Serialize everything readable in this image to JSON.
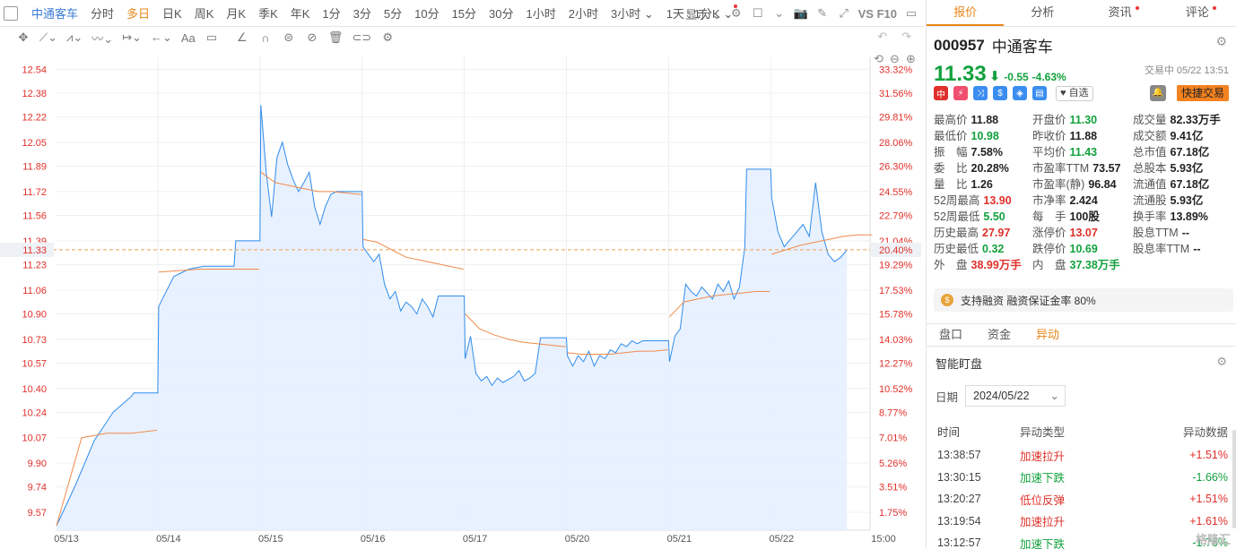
{
  "topbar": {
    "stock_name": "中通客车",
    "tabs": [
      "分时",
      "多日",
      "日K",
      "周K",
      "月K",
      "季K",
      "年K",
      "1分",
      "3分",
      "5分",
      "10分",
      "15分",
      "30分",
      "1小时",
      "2小时",
      "3小时"
    ],
    "active_tab": "多日",
    "period_select": "1天 : 1分K",
    "display_label": "显示",
    "f10_label": "VS F10"
  },
  "right_tabs": [
    "报价",
    "分析",
    "资讯",
    "评论"
  ],
  "quote": {
    "code": "000957",
    "name": "中通客车",
    "price": "11.33",
    "change": "-0.55",
    "change_pct": "-4.63%",
    "status": "交易中 05/22 13:51",
    "watch_label": "自选",
    "fast_trade_label": "快捷交易",
    "badges": [
      "中",
      "⚡",
      "⤨",
      "$",
      "◈",
      "▤"
    ],
    "stats": [
      {
        "label": "最高价",
        "value": "11.88",
        "color": "neutral"
      },
      {
        "label": "开盘价",
        "value": "11.30",
        "color": "dn"
      },
      {
        "label": "成交量",
        "value": "82.33万手",
        "color": "neutral"
      },
      {
        "label": "最低价",
        "value": "10.98",
        "color": "dn"
      },
      {
        "label": "昨收价",
        "value": "11.88",
        "color": "neutral"
      },
      {
        "label": "成交额",
        "value": "9.41亿",
        "color": "neutral"
      },
      {
        "label": "振　幅",
        "value": "7.58%",
        "color": "neutral"
      },
      {
        "label": "平均价",
        "value": "11.43",
        "color": "dn"
      },
      {
        "label": "总市值",
        "value": "67.18亿",
        "color": "neutral"
      },
      {
        "label": "委　比",
        "value": "20.28%",
        "color": "neutral"
      },
      {
        "label": "市盈率TTM",
        "value": "73.57",
        "color": "neutral"
      },
      {
        "label": "总股本",
        "value": "5.93亿",
        "color": "neutral"
      },
      {
        "label": "量　比",
        "value": "1.26",
        "color": "neutral"
      },
      {
        "label": "市盈率(静)",
        "value": "96.84",
        "color": "neutral"
      },
      {
        "label": "流通值",
        "value": "67.18亿",
        "color": "neutral"
      },
      {
        "label": "52周最高",
        "value": "13.90",
        "color": "up"
      },
      {
        "label": "市净率",
        "value": "2.424",
        "color": "neutral"
      },
      {
        "label": "流通股",
        "value": "5.93亿",
        "color": "neutral"
      },
      {
        "label": "52周最低",
        "value": "5.50",
        "color": "dn"
      },
      {
        "label": "每　手",
        "value": "100股",
        "color": "neutral"
      },
      {
        "label": "换手率",
        "value": "13.89%",
        "color": "neutral"
      },
      {
        "label": "历史最高",
        "value": "27.97",
        "color": "up"
      },
      {
        "label": "涨停价",
        "value": "13.07",
        "color": "up"
      },
      {
        "label": "股息TTM",
        "value": "--",
        "color": "neutral"
      },
      {
        "label": "历史最低",
        "value": "0.32",
        "color": "dn"
      },
      {
        "label": "跌停价",
        "value": "10.69",
        "color": "dn"
      },
      {
        "label": "股息率TTM",
        "value": "--",
        "color": "neutral"
      },
      {
        "label": "外　盘",
        "value": "38.99万手",
        "color": "up"
      },
      {
        "label": "内　盘",
        "value": "37.38万手",
        "color": "dn"
      },
      {
        "label": "",
        "value": "",
        "color": "neutral"
      }
    ],
    "margin_text": "支持融资 融资保证金率 80%"
  },
  "sub_tabs": [
    "盘口",
    "资金",
    "异动"
  ],
  "active_sub_tab": "异动",
  "smart": {
    "title": "智能盯盘",
    "date_label": "日期",
    "date_value": "2024/05/22",
    "headers": [
      "时间",
      "异动类型",
      "异动数据"
    ],
    "rows": [
      {
        "time": "13:38:57",
        "type": "加速拉升",
        "value": "+1.51%",
        "dir": "up"
      },
      {
        "time": "13:30:15",
        "type": "加速下跌",
        "value": "-1.66%",
        "dir": "dn"
      },
      {
        "time": "13:20:27",
        "type": "低位反弹",
        "value": "+1.51%",
        "dir": "up"
      },
      {
        "time": "13:19:54",
        "type": "加速拉升",
        "value": "+1.61%",
        "dir": "up"
      },
      {
        "time": "13:12:57",
        "type": "加速下跌",
        "value": "-1.76%",
        "dir": "dn"
      }
    ]
  },
  "watermark": "格隆汇",
  "chart_data": {
    "type": "line",
    "title": "",
    "prev_close": 11.88,
    "last_price": 11.33,
    "last_price_pct_label": "20.40%",
    "ylim": [
      9.45,
      12.62
    ],
    "y_ticks_left": [
      "12.54",
      "12.38",
      "12.22",
      "12.05",
      "11.89",
      "11.72",
      "11.56",
      "11.39",
      "11.23",
      "11.06",
      "10.90",
      "10.73",
      "10.57",
      "10.40",
      "10.24",
      "10.07",
      "9.90",
      "9.74",
      "9.57"
    ],
    "y_ticks_right": [
      "33.32%",
      "31.56%",
      "29.81%",
      "28.06%",
      "26.30%",
      "24.55%",
      "22.79%",
      "21.04%",
      "19.29%",
      "17.53%",
      "15.78%",
      "14.03%",
      "12.27%",
      "10.52%",
      "8.77%",
      "7.01%",
      "5.26%",
      "3.51%",
      "1.75%"
    ],
    "x_labels": [
      "05/13",
      "05/14",
      "05/15",
      "05/16",
      "05/17",
      "05/20",
      "05/21",
      "05/22",
      "15:00"
    ],
    "series": [
      {
        "name": "price",
        "color": "#2f8ceb",
        "days": [
          [
            9.48,
            9.75,
            10.05,
            10.24,
            10.35
          ],
          [
            10.95,
            11.15,
            11.2,
            11.22,
            11.22,
            11.22
          ],
          [
            12.3,
            11.85,
            11.55,
            11.95,
            12.05,
            11.9,
            11.8,
            11.72,
            11.78,
            11.85,
            11.62,
            11.5,
            11.62,
            11.7,
            11.72
          ],
          [
            11.35,
            11.3,
            11.25,
            11.3,
            11.1,
            11.0,
            11.05,
            10.92,
            10.98,
            10.95,
            10.9,
            11.0,
            10.95,
            10.88,
            11.02
          ],
          [
            10.6,
            10.75,
            10.5,
            10.45,
            10.48,
            10.42,
            10.47,
            10.44,
            10.46,
            10.48,
            10.52,
            10.45,
            10.47,
            10.5,
            10.74
          ],
          [
            10.62,
            10.55,
            10.62,
            10.58,
            10.65,
            10.55,
            10.62,
            10.6,
            10.66,
            10.64,
            10.7,
            10.68,
            10.72,
            10.7,
            10.72
          ],
          [
            10.58,
            10.75,
            10.8,
            11.1,
            11.05,
            11.02,
            11.08,
            11.04,
            11.0,
            11.1,
            11.05,
            11.12,
            11.0,
            11.08,
            11.35
          ],
          [
            11.68,
            11.45,
            11.35,
            11.4,
            11.45,
            11.5,
            11.42,
            11.78,
            11.45,
            11.3,
            11.25,
            11.28,
            11.33
          ]
        ]
      },
      {
        "name": "avg",
        "color": "#f08a4b",
        "days": [
          [
            9.48,
            10.07,
            10.1,
            10.1,
            10.12
          ],
          [
            11.18,
            11.19,
            11.2,
            11.2,
            11.2,
            11.2
          ],
          [
            11.85,
            11.78,
            11.76,
            11.74,
            11.72,
            11.72,
            11.71,
            11.7
          ],
          [
            11.4,
            11.38,
            11.33,
            11.28,
            11.26,
            11.24,
            11.22,
            11.2
          ],
          [
            10.9,
            10.8,
            10.76,
            10.73,
            10.71,
            10.7,
            10.69,
            10.68
          ],
          [
            10.64,
            10.63,
            10.63,
            10.63,
            10.64,
            10.65,
            10.65,
            10.66
          ],
          [
            10.88,
            10.98,
            11.0,
            11.02,
            11.03,
            11.04,
            11.05,
            11.05
          ],
          [
            11.3,
            11.33,
            11.36,
            11.38,
            11.4,
            11.42,
            11.43,
            11.43
          ]
        ]
      }
    ],
    "gap_levels": [
      10.37,
      11.39,
      11.87
    ],
    "grid": true
  }
}
